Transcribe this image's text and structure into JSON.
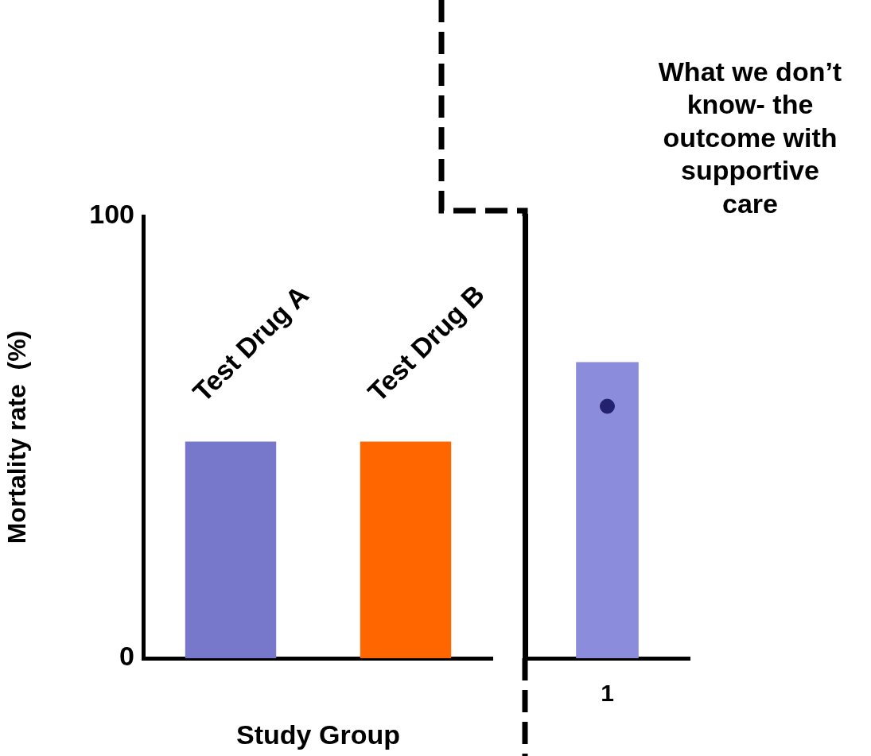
{
  "chart_data": [
    {
      "type": "bar",
      "categories": [
        "Test Drug A",
        "Test Drug B"
      ],
      "values": [
        49,
        49
      ],
      "colors": [
        "#7777cc",
        "#ff6600"
      ],
      "ylim": [
        0,
        100
      ],
      "yticks": [
        0,
        100
      ],
      "ylabel": "Mortality rate  (%)",
      "xlabel": "Study Group",
      "tick_labels": "y"
    },
    {
      "type": "bar",
      "categories": [
        "1"
      ],
      "ylim": [
        0,
        100
      ],
      "tick_labels": "x",
      "marker": "circle",
      "annotations": [
        "What we don’t know- the outcome with supportive care"
      ],
      "series": [
        {
          "type": "bar",
          "color": "#8c8cdc",
          "values": [
            67
          ]
        },
        {
          "type": "scatter",
          "color": "#22226e",
          "x": [
            "1"
          ],
          "values": [
            57
          ]
        }
      ]
    }
  ]
}
